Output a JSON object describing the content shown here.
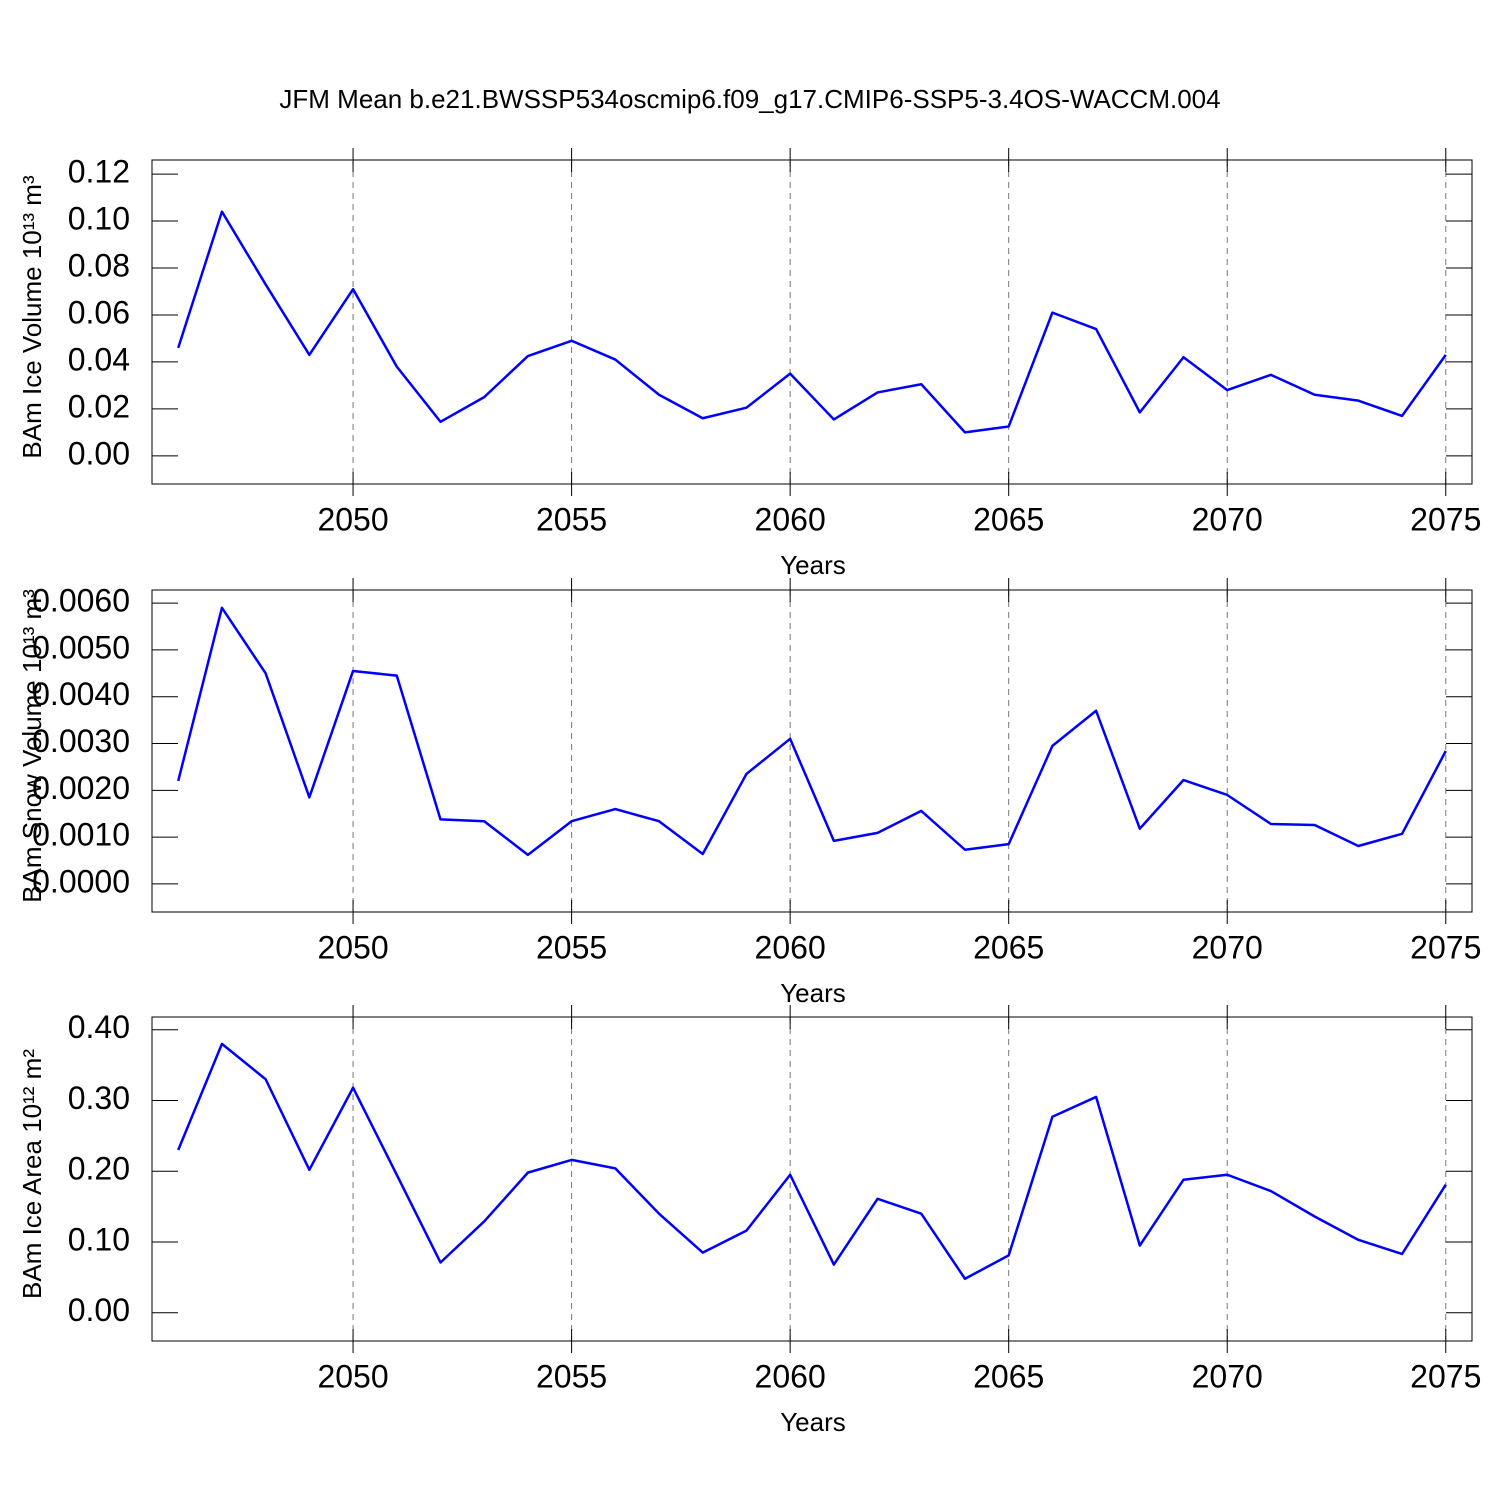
{
  "title": "JFM Mean b.e21.BWSSP534oscmip6.f09_g17.CMIP6-SSP5-3.4OS-WACCM.004",
  "chart_data": [
    {
      "type": "line",
      "ylabel": "BAm Ice Volume 10¹³ m³",
      "xlabel": "Years",
      "x": [
        2046,
        2047,
        2048,
        2049,
        2050,
        2051,
        2052,
        2053,
        2054,
        2055,
        2056,
        2057,
        2058,
        2059,
        2060,
        2061,
        2062,
        2063,
        2064,
        2065,
        2066,
        2067,
        2068,
        2069,
        2070,
        2071,
        2072,
        2073,
        2074,
        2075
      ],
      "values": [
        0.046,
        0.104,
        0.073,
        0.043,
        0.071,
        0.038,
        0.0145,
        0.025,
        0.0425,
        0.049,
        0.041,
        0.026,
        0.016,
        0.0205,
        0.035,
        0.0155,
        0.027,
        0.0305,
        0.01,
        0.0125,
        0.061,
        0.054,
        0.0185,
        0.042,
        0.028,
        0.0345,
        0.026,
        0.0235,
        0.017,
        0.043
      ],
      "color": "#0000ff",
      "xlim": [
        2045.4,
        2075.6
      ],
      "xticks": [
        2050,
        2055,
        2060,
        2065,
        2070,
        2075
      ],
      "ylim": [
        -0.012,
        0.126
      ],
      "yticks": [
        {
          "value": 0,
          "label": "0.00"
        },
        0.02,
        0.04,
        0.06,
        0.08,
        {
          "value": 0.1,
          "label": "0.10"
        },
        0.12
      ],
      "grid": true
    },
    {
      "type": "line",
      "ylabel": "BAm Snow Volume 10¹³ m³",
      "xlabel": "Years",
      "x": [
        2046,
        2047,
        2048,
        2049,
        2050,
        2051,
        2052,
        2053,
        2054,
        2055,
        2056,
        2057,
        2058,
        2059,
        2060,
        2061,
        2062,
        2063,
        2064,
        2065,
        2066,
        2067,
        2068,
        2069,
        2070,
        2071,
        2072,
        2073,
        2074,
        2075
      ],
      "values": [
        0.0022,
        0.0059,
        0.0045,
        0.00185,
        0.00455,
        0.00445,
        0.00138,
        0.00134,
        0.00062,
        0.00134,
        0.0016,
        0.00134,
        0.00064,
        0.00235,
        0.0031,
        0.00092,
        0.00109,
        0.00156,
        0.00073,
        0.00085,
        0.00295,
        0.0037,
        0.00118,
        0.00222,
        0.0019,
        0.00128,
        0.00126,
        0.00081,
        0.00107,
        0.00284
      ],
      "color": "#0000ff",
      "xlim": [
        2045.4,
        2075.6
      ],
      "xticks": [
        2050,
        2055,
        2060,
        2065,
        2070,
        2075
      ],
      "ylim": [
        -0.0006,
        0.00628
      ],
      "yticks": [
        {
          "value": 0,
          "label": "0.0000"
        },
        {
          "value": 0.001,
          "label": "0.0010"
        },
        {
          "value": 0.002,
          "label": "0.0020"
        },
        {
          "value": 0.003,
          "label": "0.0030"
        },
        {
          "value": 0.004,
          "label": "0.0040"
        },
        {
          "value": 0.005,
          "label": "0.0050"
        },
        {
          "value": 0.006,
          "label": "0.0060"
        }
      ],
      "grid": true
    },
    {
      "type": "line",
      "ylabel": "BAm Ice Area 10¹² m²",
      "xlabel": "Years",
      "x": [
        2046,
        2047,
        2048,
        2049,
        2050,
        2051,
        2052,
        2053,
        2054,
        2055,
        2056,
        2057,
        2058,
        2059,
        2060,
        2061,
        2062,
        2063,
        2064,
        2065,
        2066,
        2067,
        2068,
        2069,
        2070,
        2071,
        2072,
        2073,
        2074,
        2075
      ],
      "values": [
        0.23,
        0.38,
        0.33,
        0.202,
        0.318,
        0.195,
        0.071,
        0.129,
        0.198,
        0.216,
        0.204,
        0.14,
        0.085,
        0.116,
        0.195,
        0.068,
        0.161,
        0.14,
        0.048,
        0.081,
        0.277,
        0.305,
        0.095,
        0.188,
        0.195,
        0.172,
        0.136,
        0.103,
        0.083,
        0.181
      ],
      "color": "#0000ff",
      "xlim": [
        2045.4,
        2075.6
      ],
      "xticks": [
        2050,
        2055,
        2060,
        2065,
        2070,
        2075
      ],
      "ylim": [
        -0.04,
        0.418
      ],
      "yticks": [
        {
          "value": 0,
          "label": "0.00"
        },
        {
          "value": 0.1,
          "label": "0.10"
        },
        {
          "value": 0.2,
          "label": "0.20"
        },
        {
          "value": 0.3,
          "label": "0.30"
        },
        {
          "value": 0.4,
          "label": "0.40"
        }
      ],
      "grid": true
    }
  ]
}
